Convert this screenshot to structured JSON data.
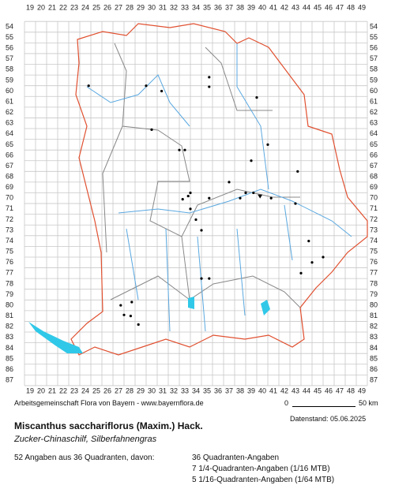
{
  "map": {
    "x_labels": [
      19,
      20,
      21,
      22,
      23,
      24,
      25,
      26,
      27,
      28,
      29,
      30,
      31,
      32,
      33,
      34,
      35,
      36,
      37,
      38,
      39,
      40,
      41,
      42,
      43,
      44,
      45,
      46,
      47,
      48,
      49
    ],
    "y_labels": [
      54,
      55,
      56,
      57,
      58,
      59,
      60,
      61,
      62,
      63,
      64,
      65,
      66,
      67,
      68,
      69,
      70,
      71,
      72,
      73,
      74,
      75,
      76,
      77,
      78,
      79,
      80,
      81,
      82,
      83,
      84,
      85,
      86,
      87
    ],
    "credit": "Arbeitsgemeinschaft Flora von Bayern - www.bayernflora.de",
    "scale_start": "0",
    "scale_end": "50 km",
    "date": "Datenstand: 05.06.2025"
  },
  "species": {
    "name": "Miscanthus sacchariflorus (Maxim.) Hack.",
    "common_names": "Zucker-Chinaschilf, Silberfahnengras"
  },
  "summary": {
    "total": "52 Angaben aus 36 Quadranten, davon:",
    "lines": [
      "36 Quadranten-Angaben",
      "7 1/4-Quadranten-Angaben (1/16 MTB)",
      "5 1/16-Quadranten-Angaben (1/64 MTB)"
    ]
  }
}
